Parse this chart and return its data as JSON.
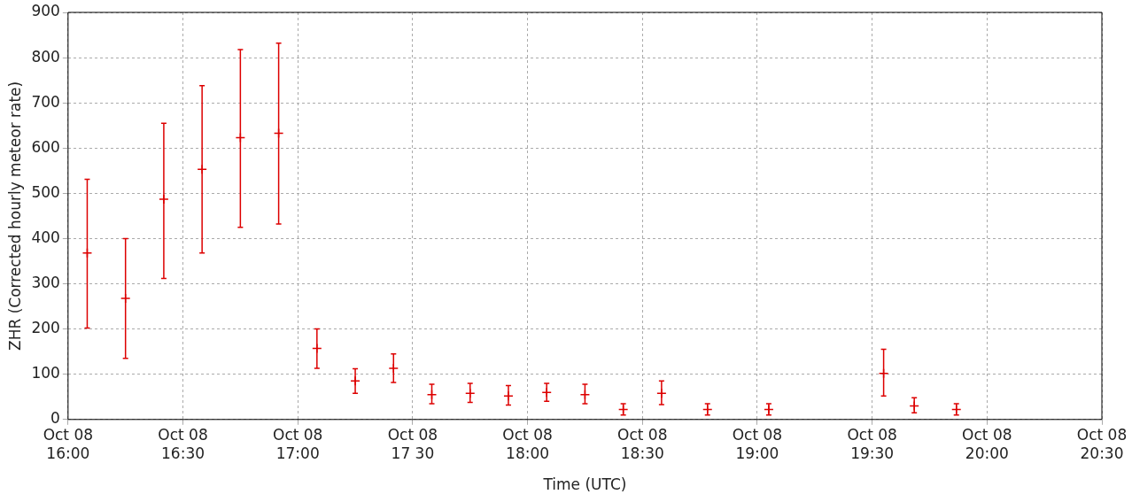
{
  "chart_data": {
    "type": "scatter",
    "xlabel": "Time (UTC)",
    "ylabel": "ZHR (Corrected hourly meteor rate)",
    "xlim": [
      "--10-08T16:00",
      "--10-08T20:30"
    ],
    "xticks": [
      {
        "value": "--10-08T16:00",
        "label": "Oct 08\n16:00"
      },
      {
        "value": "--10-08T16:30",
        "label": "Oct 08\n16:30"
      },
      {
        "value": "--10-08T17:00",
        "label": "Oct 08\n17:00"
      },
      {
        "value": "--10-08T17:30",
        "label": "Oct 08\n17 30"
      },
      {
        "value": "--10-08T18:00",
        "label": "Oct 08\n18:00"
      },
      {
        "value": "--10-08T18:30",
        "label": "Oct 08\n18:30"
      },
      {
        "value": "--10-08T19:00",
        "label": "Oct 08\n19:00"
      },
      {
        "value": "--10-08T19:30",
        "label": "Oct 08\n19:30"
      },
      {
        "value": "--10-08T20:00",
        "label": "Oct 08\n20:00"
      },
      {
        "value": "--10-08T20:30",
        "label": "Oct 08\n20:30"
      }
    ],
    "ylim": [
      0,
      900
    ],
    "yticks": [
      0,
      100,
      200,
      300,
      400,
      500,
      600,
      700,
      800,
      900
    ],
    "grid": true,
    "legend": false,
    "marker": "cross",
    "series": [
      {
        "color": "#dd0000",
        "x": [
          "--10-08T16:05",
          "--10-08T16:15",
          "--10-08T16:25",
          "--10-08T16:35",
          "--10-08T16:45",
          "--10-08T16:55",
          "--10-08T17:05",
          "--10-08T17:15",
          "--10-08T17:25",
          "--10-08T17:35",
          "--10-08T17:45",
          "--10-08T17:55",
          "--10-08T18:05",
          "--10-08T18:15",
          "--10-08T18:25",
          "--10-08T18:35",
          "--10-08T18:47",
          "--10-08T19:03",
          "--10-08T19:33",
          "--10-08T19:41",
          "--10-08T19:52"
        ],
        "values": [
          368,
          268,
          487,
          553,
          623,
          633,
          157,
          85,
          113,
          55,
          58,
          52,
          60,
          55,
          22,
          58,
          22,
          22,
          102,
          30,
          22
        ],
        "errors": [
          [
            202,
            531
          ],
          [
            135,
            400
          ],
          [
            312,
            655
          ],
          [
            368,
            738
          ],
          [
            425,
            818
          ],
          [
            432,
            832
          ],
          [
            113,
            200
          ],
          [
            58,
            112
          ],
          [
            82,
            145
          ],
          [
            35,
            78
          ],
          [
            38,
            80
          ],
          [
            32,
            75
          ],
          [
            40,
            80
          ],
          [
            35,
            78
          ],
          [
            10,
            35
          ],
          [
            33,
            85
          ],
          [
            10,
            35
          ],
          [
            10,
            35
          ],
          [
            52,
            155
          ],
          [
            15,
            48
          ],
          [
            10,
            35
          ]
        ]
      }
    ]
  }
}
